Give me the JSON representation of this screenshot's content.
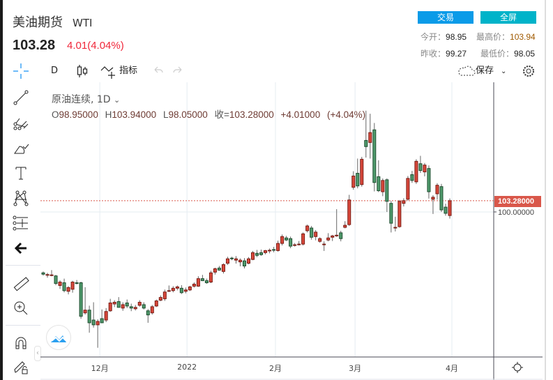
{
  "header": {
    "title": "美油期货",
    "symbol": "WTI",
    "price": "103.28",
    "change": "4.01(4.04%)",
    "trade_button": "交易",
    "fullscreen_button": "全屏",
    "stats": {
      "open_label": "今开：",
      "open": "98.95",
      "high_label": "最高价：",
      "high": "103.94",
      "prev_close_label": "昨收：",
      "prev_close": "99.27",
      "low_label": "最低价：",
      "low": "98.05"
    }
  },
  "toolbar": {
    "interval": "D",
    "indicators_label": "指标",
    "save_label": "保存"
  },
  "legend": {
    "series_name": "原油连续, 1D",
    "o_label": "O",
    "o": "98.95000",
    "h_label": "H",
    "h": "103.94000",
    "l_label": "L",
    "l": "98.05000",
    "c_label": "收=",
    "c": "103.28000",
    "change": "+4.01000 (+4.04%)"
  },
  "colors": {
    "up": "#d9483b",
    "down": "#4f9a6c",
    "accent": "#2196f3",
    "last_price": "#d9574a"
  },
  "left_tools": [
    "crosshair-icon",
    "trend-line-icon",
    "pitchfork-icon",
    "brush-icon",
    "text-icon",
    "pattern-icon",
    "measure-icon",
    "back-arrow-icon",
    "ruler-icon",
    "zoom-in-icon",
    "magnet-icon",
    "lock-drawing-icon"
  ],
  "chart_data": {
    "type": "candlestick",
    "title": "原油连续, 1D",
    "ylim": [
      57.6,
      137.9
    ],
    "price_axis_labels": [
      "103.28000",
      "100.00000"
    ],
    "last_price": 103.28,
    "gridline_price": 100,
    "x_tick_labels": [
      {
        "label": "12月",
        "index": 13.5
      },
      {
        "label": "2022",
        "index": 34.3
      },
      {
        "label": "2月",
        "index": 55.4
      },
      {
        "label": "3月",
        "index": 74.4
      },
      {
        "label": "4月",
        "index": 97.5
      }
    ],
    "ohlc": [
      [
        82.2,
        82.6,
        81.4,
        81.8
      ],
      [
        81.6,
        82.2,
        80.8,
        81.7
      ],
      [
        81.6,
        83.0,
        81.2,
        81.6
      ],
      [
        81.3,
        81.6,
        78.6,
        79.1
      ],
      [
        78.5,
        80.0,
        77.5,
        79.5
      ],
      [
        79.3,
        80.5,
        76.5,
        77.0
      ],
      [
        76.8,
        78.3,
        75.9,
        77.9
      ],
      [
        77.4,
        79.9,
        76.4,
        79.5
      ],
      [
        79.3,
        80.1,
        78.8,
        79.2
      ],
      [
        79.3,
        79.6,
        68.8,
        69.5
      ],
      [
        70.5,
        78.0,
        70.0,
        71.3
      ],
      [
        71.3,
        72.6,
        64.7,
        67.6
      ],
      [
        68.4,
        73.6,
        66.2,
        67.0
      ],
      [
        67.0,
        68.6,
        60.3,
        68.0
      ],
      [
        68.8,
        71.5,
        67.9,
        67.6
      ],
      [
        68.4,
        71.9,
        67.8,
        70.9
      ],
      [
        71.1,
        74.6,
        70.8,
        73.4
      ],
      [
        73.1,
        74.2,
        72.2,
        73.6
      ],
      [
        73.8,
        75.1,
        72.5,
        72.1
      ],
      [
        71.9,
        73.6,
        71.1,
        72.9
      ],
      [
        73.4,
        74.4,
        71.9,
        72.5
      ],
      [
        72.3,
        73.2,
        71.0,
        71.9
      ],
      [
        71.7,
        72.8,
        71.2,
        72.1
      ],
      [
        72.7,
        74.2,
        72.3,
        73.6
      ],
      [
        72.9,
        73.6,
        71.5,
        71.9
      ],
      [
        71.1,
        71.6,
        67.6,
        69.9
      ],
      [
        70.5,
        72.8,
        70.0,
        72.3
      ],
      [
        72.5,
        74.4,
        72.2,
        74.0
      ],
      [
        74.2,
        75.6,
        73.9,
        75.0
      ],
      [
        74.6,
        77.3,
        74.0,
        76.6
      ],
      [
        77.0,
        78.5,
        76.6,
        77.0
      ],
      [
        77.0,
        78.3,
        76.5,
        77.7
      ],
      [
        77.7,
        78.5,
        77.1,
        78.1
      ],
      [
        77.7,
        78.6,
        76.0,
        76.4
      ],
      [
        76.8,
        77.9,
        76.2,
        77.2
      ],
      [
        77.2,
        78.4,
        76.9,
        78.1
      ],
      [
        78.3,
        79.4,
        77.9,
        78.9
      ],
      [
        78.3,
        81.2,
        78.1,
        80.5
      ],
      [
        80.5,
        81.6,
        79.8,
        79.9
      ],
      [
        79.9,
        80.5,
        79.0,
        79.3
      ],
      [
        79.5,
        82.8,
        79.2,
        82.2
      ],
      [
        82.4,
        83.7,
        81.7,
        83.4
      ],
      [
        83.6,
        84.2,
        82.8,
        83.0
      ],
      [
        82.6,
        85.0,
        82.0,
        84.6
      ],
      [
        85.0,
        86.9,
        84.5,
        86.3
      ],
      [
        86.5,
        86.9,
        85.9,
        86.3
      ],
      [
        85.9,
        87.1,
        84.9,
        86.3
      ],
      [
        85.4,
        86.4,
        84.1,
        85.9
      ],
      [
        85.7,
        86.5,
        83.5,
        84.2
      ],
      [
        85.0,
        86.8,
        84.7,
        86.3
      ],
      [
        86.1,
        88.6,
        85.9,
        88.1
      ],
      [
        87.9,
        88.9,
        86.8,
        87.3
      ],
      [
        88.1,
        89.0,
        87.2,
        87.5
      ],
      [
        88.1,
        88.9,
        87.6,
        88.7
      ],
      [
        88.7,
        89.3,
        87.9,
        88.8
      ],
      [
        89.0,
        89.8,
        88.2,
        88.9
      ],
      [
        88.7,
        91.6,
        88.4,
        90.8
      ],
      [
        90.8,
        93.4,
        90.2,
        92.8
      ],
      [
        92.4,
        93.0,
        91.5,
        91.8
      ],
      [
        92.2,
        92.8,
        89.4,
        90.0
      ],
      [
        90.4,
        90.9,
        89.9,
        90.4
      ],
      [
        90.6,
        91.5,
        90.2,
        90.6
      ],
      [
        90.6,
        94.0,
        90.2,
        93.6
      ],
      [
        94.5,
        96.3,
        94.0,
        95.9
      ],
      [
        95.3,
        95.9,
        91.9,
        92.6
      ],
      [
        92.8,
        94.7,
        91.7,
        94.1
      ],
      [
        91.4,
        92.6,
        91.0,
        92.2
      ],
      [
        90.6,
        91.4,
        88.6,
        90.6
      ],
      [
        91.8,
        93.8,
        91.4,
        92.4
      ],
      [
        92.6,
        93.3,
        91.5,
        93.0
      ],
      [
        93.0,
        100.8,
        92.7,
        93.2
      ],
      [
        93.9,
        94.5,
        91.4,
        92.2
      ],
      [
        95.5,
        97.3,
        95.2,
        96.1
      ],
      [
        96.3,
        105.0,
        95.9,
        103.5
      ],
      [
        107.2,
        111.9,
        106.5,
        110.5
      ],
      [
        111.3,
        115.6,
        106.9,
        107.6
      ],
      [
        108.0,
        116.1,
        107.4,
        115.4
      ],
      [
        120.9,
        129.6,
        115.9,
        119.1
      ],
      [
        120.3,
        128.7,
        115.6,
        123.2
      ],
      [
        124.0,
        126.0,
        106.0,
        108.6
      ],
      [
        110.3,
        115.1,
        105.8,
        106.2
      ],
      [
        105.9,
        109.8,
        104.6,
        109.2
      ],
      [
        109.4,
        109.8,
        100.0,
        103.1
      ],
      [
        102.5,
        103.2,
        94.0,
        96.7
      ],
      [
        95.5,
        98.6,
        94.3,
        95.5
      ],
      [
        95.7,
        103.5,
        95.4,
        103.1
      ],
      [
        102.5,
        104.0,
        101.6,
        103.3
      ],
      [
        103.7,
        110.5,
        103.3,
        109.8
      ],
      [
        110.9,
        112.0,
        108.5,
        109.2
      ],
      [
        108.8,
        115.4,
        108.2,
        114.8
      ],
      [
        114.1,
        116.4,
        111.4,
        112.1
      ],
      [
        111.7,
        114.3,
        110.4,
        113.7
      ],
      [
        112.7,
        113.6,
        103.9,
        105.9
      ],
      [
        103.7,
        104.9,
        99.4,
        104.3
      ],
      [
        105.3,
        108.4,
        103.6,
        107.8
      ],
      [
        107.4,
        108.2,
        100.0,
        100.6
      ],
      [
        101.4,
        102.4,
        98.9,
        99.6
      ],
      [
        98.95,
        103.94,
        98.05,
        103.28
      ]
    ]
  }
}
